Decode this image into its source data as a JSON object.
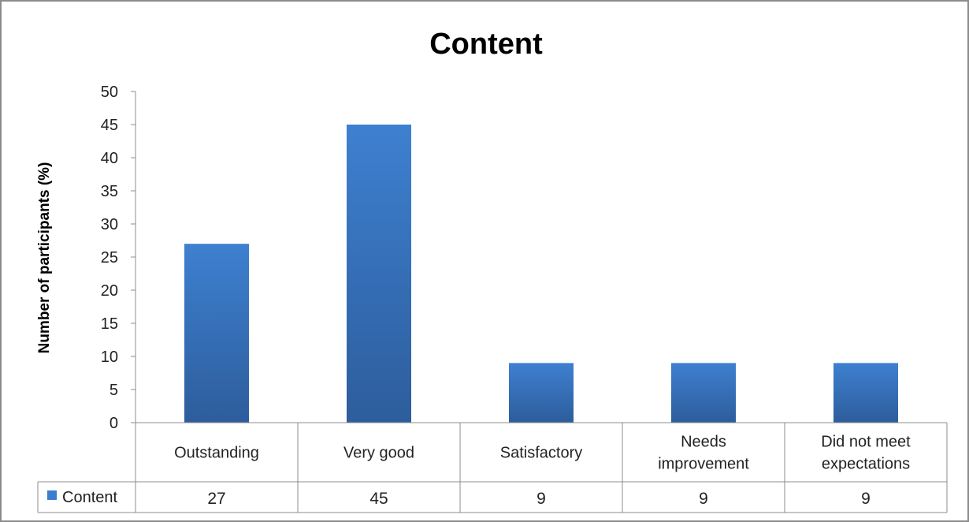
{
  "chart_data": {
    "type": "bar",
    "title": "Content",
    "xlabel": "",
    "ylabel": "Number of participants (%)",
    "ylim": [
      0,
      50
    ],
    "yticks": [
      0,
      5,
      10,
      15,
      20,
      25,
      30,
      35,
      40,
      45,
      50
    ],
    "grid": false,
    "categories": [
      [
        "Outstanding"
      ],
      [
        "Very good"
      ],
      [
        "Satisfactory"
      ],
      [
        "Needs",
        "improvement"
      ],
      [
        "Did not meet",
        "expectations"
      ]
    ],
    "series": [
      {
        "name": "Content",
        "values": [
          27,
          45,
          9,
          9,
          9
        ],
        "color": "#3c7dcd"
      }
    ],
    "data_table": true,
    "legend": "data-table-left"
  }
}
